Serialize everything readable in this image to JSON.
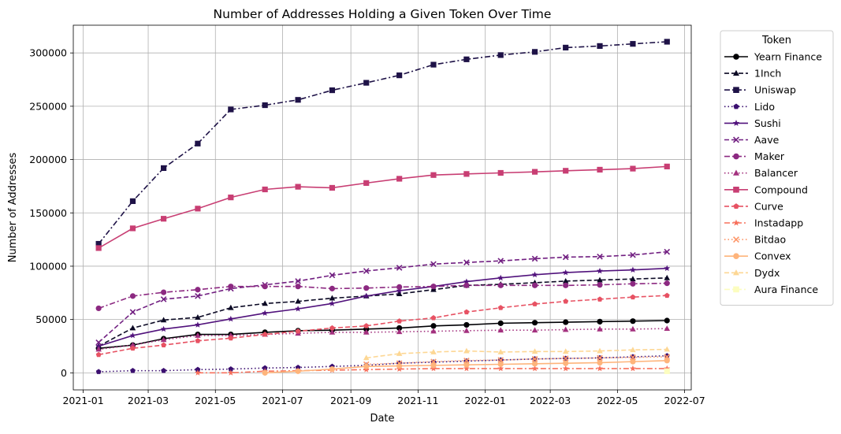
{
  "chart_data": {
    "type": "line",
    "title": "Number of Addresses Holding a Given Token Over Time",
    "xlabel": "Date",
    "ylabel": "Number of Addresses",
    "xlim": [
      "2020-12-23",
      "2022-07-07"
    ],
    "ylim": [
      -16000,
      326000
    ],
    "grid": true,
    "legend": {
      "title": "Token",
      "placement": "outside-right"
    },
    "x_ticks": [
      "2021-01",
      "2021-03",
      "2021-05",
      "2021-07",
      "2021-09",
      "2021-11",
      "2022-01",
      "2022-03",
      "2022-05",
      "2022-07"
    ],
    "x_tick_dates": [
      "2021-01-01",
      "2021-03-01",
      "2021-05-01",
      "2021-07-01",
      "2021-09-01",
      "2021-11-01",
      "2022-01-01",
      "2022-03-01",
      "2022-05-01",
      "2022-07-01"
    ],
    "y_ticks": [
      0,
      50000,
      100000,
      150000,
      200000,
      250000,
      300000
    ],
    "x": [
      "2021-01-15",
      "2021-02-15",
      "2021-03-15",
      "2021-04-15",
      "2021-05-15",
      "2021-06-15",
      "2021-07-15",
      "2021-08-15",
      "2021-09-15",
      "2021-10-15",
      "2021-11-15",
      "2021-12-15",
      "2022-01-15",
      "2022-02-15",
      "2022-03-15",
      "2022-04-15",
      "2022-05-15",
      "2022-06-15"
    ],
    "series": [
      {
        "name": "Yearn Finance",
        "color": "#000004",
        "dash": "solid",
        "marker": "circle",
        "values": [
          23000,
          26000,
          32000,
          36000,
          36000,
          38000,
          39500,
          40000,
          41000,
          42000,
          44000,
          45000,
          46500,
          47000,
          47500,
          48000,
          48500,
          49000
        ]
      },
      {
        "name": "1Inch",
        "color": "#0b0924",
        "dash": "dashed",
        "marker": "triangle",
        "values": [
          25000,
          42000,
          49500,
          52000,
          61000,
          65000,
          67000,
          70000,
          72000,
          74000,
          78000,
          82000,
          83000,
          84500,
          86000,
          87000,
          88000,
          89000
        ]
      },
      {
        "name": "Uniswap",
        "color": "#1e1247",
        "dash": "dashdot",
        "marker": "square",
        "values": [
          121000,
          161000,
          192000,
          215000,
          247000,
          251000,
          256000,
          265000,
          272000,
          279000,
          289000,
          294000,
          298000,
          301000,
          305000,
          306500,
          308500,
          310500
        ]
      },
      {
        "name": "Lido",
        "color": "#3b0f70",
        "dash": "dotted",
        "marker": "pentagon",
        "values": [
          1000,
          2000,
          2000,
          3000,
          3500,
          4500,
          5000,
          6000,
          7000,
          9000,
          10000,
          11000,
          12000,
          13000,
          13500,
          14000,
          15000,
          16000
        ]
      },
      {
        "name": "Sushi",
        "color": "#51127c",
        "dash": "solid",
        "marker": "star",
        "values": [
          25000,
          35000,
          41000,
          45000,
          50500,
          56000,
          60000,
          65000,
          72000,
          77000,
          81000,
          85500,
          89000,
          92000,
          94000,
          95500,
          96500,
          98000
        ]
      },
      {
        "name": "Aave",
        "color": "#711f81",
        "dash": "dashed",
        "marker": "x",
        "values": [
          28500,
          57000,
          69000,
          72000,
          79000,
          82500,
          86000,
          91500,
          95500,
          98500,
          102000,
          103500,
          105000,
          107000,
          108500,
          109000,
          110500,
          113500
        ]
      },
      {
        "name": "Maker",
        "color": "#8c2981",
        "dash": "dashdot",
        "marker": "circle",
        "values": [
          60500,
          72000,
          75500,
          78000,
          81000,
          81000,
          81000,
          79000,
          79500,
          80500,
          81000,
          82000,
          82000,
          82000,
          82000,
          82500,
          83500,
          84000
        ]
      },
      {
        "name": "Balancer",
        "color": "#a3307e",
        "dash": "dotted",
        "marker": "triangle",
        "values": [
          22000,
          26000,
          31000,
          35000,
          35000,
          36000,
          37000,
          38000,
          38000,
          38500,
          39000,
          39500,
          40000,
          40000,
          40500,
          41000,
          41000,
          41500
        ]
      },
      {
        "name": "Compound",
        "color": "#c83e73",
        "dash": "solid",
        "marker": "square",
        "values": [
          117000,
          135500,
          144500,
          154000,
          164500,
          172000,
          174500,
          173500,
          178000,
          182000,
          185500,
          186500,
          187500,
          188500,
          189500,
          190500,
          191500,
          193500
        ]
      },
      {
        "name": "Curve",
        "color": "#e75263",
        "dash": "dashed",
        "marker": "pentagon",
        "values": [
          17000,
          23000,
          26000,
          30000,
          32500,
          36000,
          39000,
          42000,
          44000,
          48500,
          51500,
          57000,
          61000,
          64500,
          67000,
          69000,
          71000,
          72500
        ]
      },
      {
        "name": "Instadapp",
        "color": "#f7705c",
        "dash": "dashdot",
        "marker": "star",
        "values": [
          null,
          null,
          null,
          0,
          0,
          1500,
          2000,
          2500,
          3000,
          3500,
          4000,
          4000,
          4000,
          4000,
          4000,
          4000,
          4000,
          4000
        ]
      },
      {
        "name": "Bitdao",
        "color": "#fd9567",
        "dash": "dotted",
        "marker": "x",
        "values": [
          null,
          null,
          null,
          null,
          null,
          null,
          null,
          null,
          8000,
          9000,
          10500,
          11500,
          12000,
          13000,
          13500,
          14000,
          14500,
          15000
        ]
      },
      {
        "name": "Convex",
        "color": "#feb47b",
        "dash": "solid",
        "marker": "circle",
        "values": [
          null,
          null,
          null,
          null,
          null,
          0,
          1500,
          3500,
          6000,
          6500,
          7000,
          7500,
          8000,
          8500,
          9000,
          9500,
          10500,
          11500
        ]
      },
      {
        "name": "Dydx",
        "color": "#fdd794",
        "dash": "dashed",
        "marker": "triangle",
        "values": [
          null,
          null,
          null,
          null,
          null,
          null,
          null,
          null,
          14000,
          18000,
          19500,
          20500,
          19500,
          20000,
          20000,
          20500,
          21500,
          22000
        ]
      },
      {
        "name": "Aura Finance",
        "color": "#fcfdbf",
        "dash": "dashdot",
        "marker": "square",
        "values": [
          null,
          null,
          null,
          null,
          null,
          null,
          null,
          null,
          null,
          null,
          null,
          null,
          null,
          null,
          null,
          null,
          null,
          1500
        ]
      }
    ]
  }
}
